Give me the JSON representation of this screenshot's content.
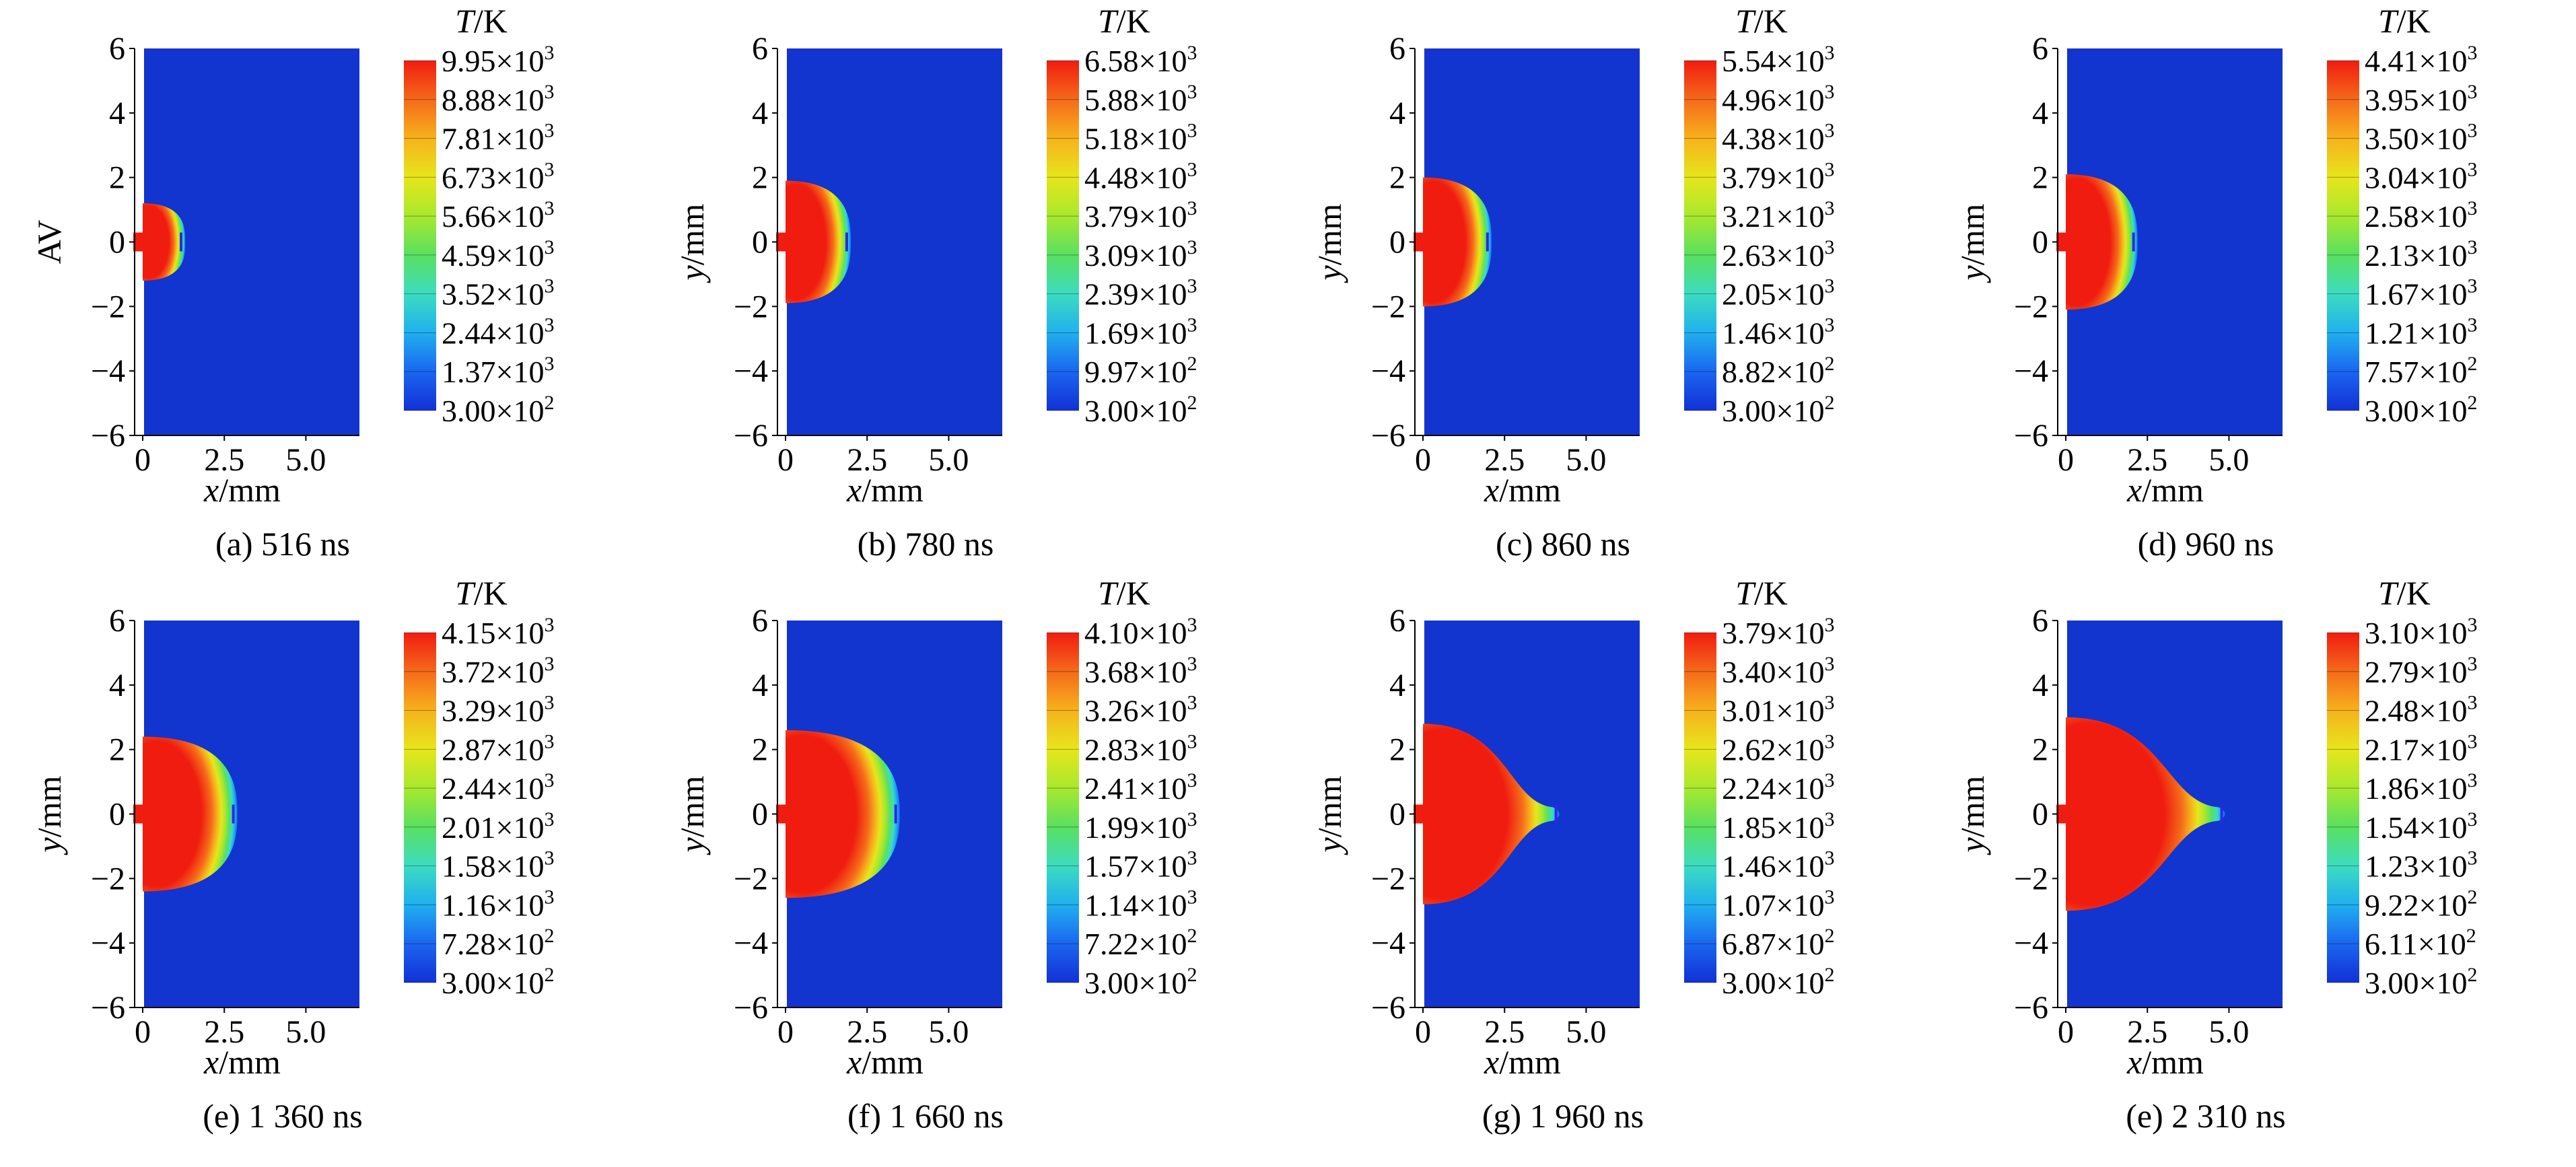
{
  "colors": {
    "background": "#1234cf",
    "scale": [
      "#1230d6",
      "#1a66f0",
      "#20b0ee",
      "#3cdcc0",
      "#5ae060",
      "#a8e82e",
      "#e6e61c",
      "#f6b21c",
      "#f56a1a",
      "#f01c10"
    ]
  },
  "axis_labels": {
    "x_unit": "/mm",
    "x_var": "x",
    "y_unit": "/mm",
    "y_var": "y",
    "legend_var": "T",
    "legend_unit": "/K"
  },
  "x_ticks": [
    "0",
    "2.5",
    "5.0"
  ],
  "y_ticks": [
    "6",
    "4",
    "2",
    "0",
    "−2",
    "−4",
    "−6"
  ],
  "panels": [
    {
      "caption": "(a) 516 ns",
      "ylabel": "AV",
      "levels": [
        [
          "9.95",
          "3"
        ],
        [
          "8.88",
          "3"
        ],
        [
          "7.81",
          "3"
        ],
        [
          "6.73",
          "3"
        ],
        [
          "5.66",
          "3"
        ],
        [
          "4.59",
          "3"
        ],
        [
          "3.52",
          "3"
        ],
        [
          "2.44",
          "3"
        ],
        [
          "1.37",
          "3"
        ],
        [
          "3.00",
          "2"
        ]
      ],
      "hot_region": {
        "front_x_mm": 1.3,
        "half_height_mm": 1.2,
        "neck": false
      }
    },
    {
      "caption": "(b) 780 ns",
      "ylabel": "y",
      "levels": [
        [
          "6.58",
          "3"
        ],
        [
          "5.88",
          "3"
        ],
        [
          "5.18",
          "3"
        ],
        [
          "4.48",
          "3"
        ],
        [
          "3.79",
          "3"
        ],
        [
          "3.09",
          "3"
        ],
        [
          "2.39",
          "3"
        ],
        [
          "1.69",
          "3"
        ],
        [
          "9.97",
          "2"
        ],
        [
          "3.00",
          "2"
        ]
      ],
      "hot_region": {
        "front_x_mm": 2.0,
        "half_height_mm": 1.9,
        "neck": false
      }
    },
    {
      "caption": "(c) 860 ns",
      "ylabel": "y",
      "levels": [
        [
          "5.54",
          "3"
        ],
        [
          "4.96",
          "3"
        ],
        [
          "4.38",
          "3"
        ],
        [
          "3.79",
          "3"
        ],
        [
          "3.21",
          "3"
        ],
        [
          "2.63",
          "3"
        ],
        [
          "2.05",
          "3"
        ],
        [
          "1.46",
          "3"
        ],
        [
          "8.82",
          "2"
        ],
        [
          "3.00",
          "2"
        ]
      ],
      "hot_region": {
        "front_x_mm": 2.1,
        "half_height_mm": 2.0,
        "neck": false
      }
    },
    {
      "caption": "(d) 960 ns",
      "ylabel": "y",
      "levels": [
        [
          "4.41",
          "3"
        ],
        [
          "3.95",
          "3"
        ],
        [
          "3.50",
          "3"
        ],
        [
          "3.04",
          "3"
        ],
        [
          "2.58",
          "3"
        ],
        [
          "2.13",
          "3"
        ],
        [
          "1.67",
          "3"
        ],
        [
          "1.21",
          "3"
        ],
        [
          "7.57",
          "2"
        ],
        [
          "3.00",
          "2"
        ]
      ],
      "hot_region": {
        "front_x_mm": 2.2,
        "half_height_mm": 2.1,
        "neck": false
      }
    },
    {
      "caption": "(e) 1 360 ns",
      "ylabel": "y",
      "levels": [
        [
          "4.15",
          "3"
        ],
        [
          "3.72",
          "3"
        ],
        [
          "3.29",
          "3"
        ],
        [
          "2.87",
          "3"
        ],
        [
          "2.44",
          "3"
        ],
        [
          "2.01",
          "3"
        ],
        [
          "1.58",
          "3"
        ],
        [
          "1.16",
          "3"
        ],
        [
          "7.28",
          "2"
        ],
        [
          "3.00",
          "2"
        ]
      ],
      "hot_region": {
        "front_x_mm": 2.9,
        "half_height_mm": 2.4,
        "neck": false
      }
    },
    {
      "caption": "(f) 1 660 ns",
      "ylabel": "y",
      "levels": [
        [
          "4.10",
          "3"
        ],
        [
          "3.68",
          "3"
        ],
        [
          "3.26",
          "3"
        ],
        [
          "2.83",
          "3"
        ],
        [
          "2.41",
          "3"
        ],
        [
          "1.99",
          "3"
        ],
        [
          "1.57",
          "3"
        ],
        [
          "1.14",
          "3"
        ],
        [
          "7.22",
          "2"
        ],
        [
          "3.00",
          "2"
        ]
      ],
      "hot_region": {
        "front_x_mm": 3.5,
        "half_height_mm": 2.6,
        "neck": false
      }
    },
    {
      "caption": "(g) 1 960 ns",
      "ylabel": "y",
      "levels": [
        [
          "3.79",
          "3"
        ],
        [
          "3.40",
          "3"
        ],
        [
          "3.01",
          "3"
        ],
        [
          "2.62",
          "3"
        ],
        [
          "2.24",
          "3"
        ],
        [
          "1.85",
          "3"
        ],
        [
          "1.46",
          "3"
        ],
        [
          "1.07",
          "3"
        ],
        [
          "6.87",
          "2"
        ],
        [
          "3.00",
          "2"
        ]
      ],
      "hot_region": {
        "front_x_mm": 4.2,
        "half_height_mm": 2.8,
        "neck": true
      }
    },
    {
      "caption": "(e) 2 310 ns",
      "ylabel": "y",
      "levels": [
        [
          "3.10",
          "3"
        ],
        [
          "2.79",
          "3"
        ],
        [
          "2.48",
          "3"
        ],
        [
          "2.17",
          "3"
        ],
        [
          "1.86",
          "3"
        ],
        [
          "1.54",
          "3"
        ],
        [
          "1.23",
          "3"
        ],
        [
          "9.22",
          "2"
        ],
        [
          "6.11",
          "2"
        ],
        [
          "3.00",
          "2"
        ]
      ],
      "hot_region": {
        "front_x_mm": 4.9,
        "half_height_mm": 3.0,
        "neck": true
      }
    }
  ]
}
